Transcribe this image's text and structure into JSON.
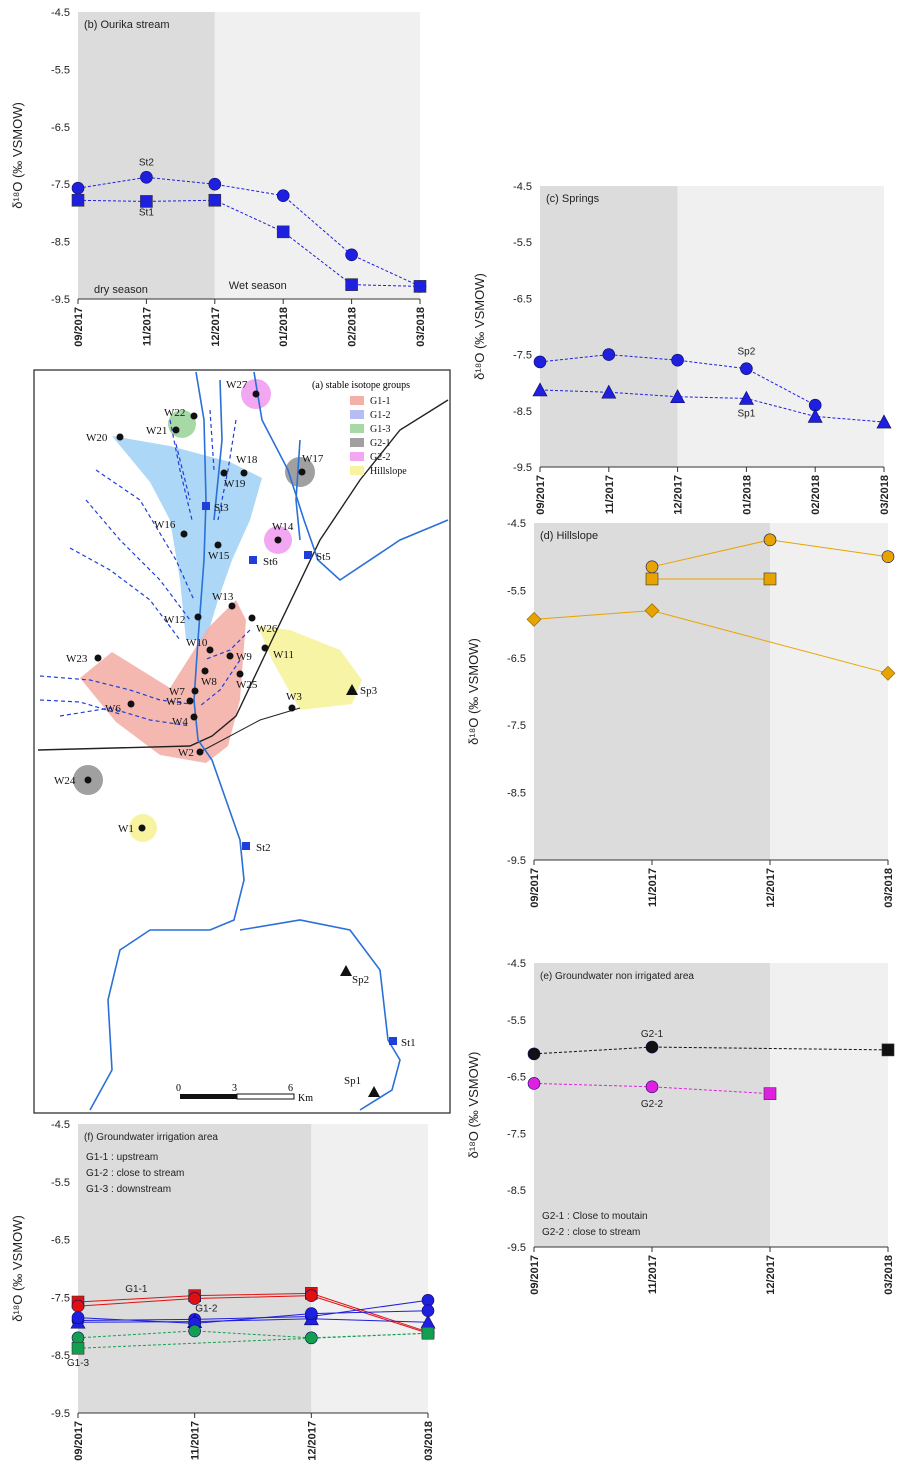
{
  "chart_data": [
    {
      "id": "b",
      "type": "line",
      "panel_title": "(b) Ourika stream",
      "ylabel": "δ¹⁸O (‰ VSMOW)",
      "ylim": [
        -9.5,
        -4.5
      ],
      "yticks": [
        "-4.5",
        "-5.5",
        "-6.5",
        "-7.5",
        "-8.5",
        "-9.5"
      ],
      "categories": [
        "09/2017",
        "11/2017",
        "12/2017",
        "01/2018",
        "02/2018",
        "03/2018"
      ],
      "dry_through": "12/2017",
      "season_labels": [
        "dry season",
        "Wet season"
      ],
      "series": [
        {
          "name": "St2",
          "marker": "circle",
          "color": "#1f1fe0",
          "dash": true,
          "values": [
            -7.57,
            -7.38,
            -7.5,
            -7.7,
            -8.73,
            -9.28
          ]
        },
        {
          "name": "St1",
          "marker": "square",
          "color": "#1f1fe0",
          "dash": true,
          "values": [
            -7.78,
            -7.8,
            -7.78,
            -8.33,
            -9.25,
            -9.28
          ]
        }
      ]
    },
    {
      "id": "c",
      "type": "line",
      "panel_title": "(c) Springs",
      "ylabel": "δ¹⁸O (‰ VSMOW)",
      "ylim": [
        -9.5,
        -4.5
      ],
      "yticks": [
        "-4.5",
        "-5.5",
        "-6.5",
        "-7.5",
        "-8.5",
        "-9.5"
      ],
      "categories": [
        "09/2017",
        "11/2017",
        "12/2017",
        "01/2018",
        "02/2018",
        "03/2018"
      ],
      "dry_through": "12/2017",
      "series": [
        {
          "name": "Sp2",
          "marker": "circle",
          "color": "#1f1fe0",
          "dash": true,
          "values": [
            -7.63,
            -7.5,
            -7.6,
            -7.75,
            -8.4,
            null
          ]
        },
        {
          "name": "Sp1",
          "marker": "triangle",
          "color": "#1f1fe0",
          "dash": true,
          "values": [
            -8.13,
            -8.17,
            -8.25,
            -8.28,
            -8.6,
            -8.7
          ]
        }
      ]
    },
    {
      "id": "d",
      "type": "line",
      "panel_title": "(d) Hillslope",
      "ylabel": "δ¹⁸O (‰ VSMOW)",
      "ylim": [
        -9.5,
        -4.5
      ],
      "yticks": [
        "-4.5",
        "-5.5",
        "-6.5",
        "-7.5",
        "-8.5",
        "-9.5"
      ],
      "categories": [
        "09/2017",
        "11/2017",
        "12/2017",
        "03/2018"
      ],
      "dry_through": "12/2017",
      "series": [
        {
          "marker": "circle",
          "color": "#e7a400",
          "dash": false,
          "values": [
            null,
            -5.15,
            -4.75,
            -5.0
          ]
        },
        {
          "marker": "square",
          "color": "#e7a400",
          "dash": false,
          "values": [
            null,
            -5.33,
            -5.33,
            null
          ]
        },
        {
          "marker": "diamond",
          "color": "#e7a400",
          "dash": false,
          "values": [
            -5.93,
            -5.8,
            null,
            -6.73
          ]
        }
      ]
    },
    {
      "id": "e",
      "type": "line",
      "panel_title": "(e) Groundwater non irrigated area",
      "ylabel": "δ¹⁸O (‰ VSMOW)",
      "ylim": [
        -9.5,
        -4.5
      ],
      "yticks": [
        "-4.5",
        "-5.5",
        "-6.5",
        "-7.5",
        "-8.5",
        "-9.5"
      ],
      "categories": [
        "09/2017",
        "11/2017",
        "12/2017",
        "03/2018"
      ],
      "dry_through": "12/2017",
      "legend_lines": [
        "G2-1 : Close to moutain",
        "G2-2 : close to stream"
      ],
      "series": [
        {
          "name": "G2-1",
          "marker": "circle",
          "color": "#111111",
          "dash": true,
          "values": [
            -6.1,
            -5.98,
            null,
            -6.03
          ],
          "end_marker": "square"
        },
        {
          "name": "G2-2",
          "marker": "circle",
          "color": "#e020e0",
          "dash": true,
          "values": [
            -6.62,
            -6.68,
            -6.8,
            null
          ],
          "end_marker": "square"
        }
      ]
    },
    {
      "id": "f",
      "type": "line",
      "panel_title": "(f) Groundwater irrigation area",
      "ylabel": "δ¹⁸O (‰ VSMOW)",
      "ylim": [
        -9.5,
        -4.5
      ],
      "yticks": [
        "-4.5",
        "-5.5",
        "-6.5",
        "-7.5",
        "-8.5",
        "-9.5"
      ],
      "categories": [
        "09/2017",
        "11/2017",
        "12/2017",
        "03/2018"
      ],
      "dry_through": "12/2017",
      "legend_lines": [
        "G1-1 : upstream",
        "G1-2 : close to stream",
        "G1-3 : downstream"
      ],
      "series": [
        {
          "name": "G1-1",
          "marker": "square",
          "color": "#e01010",
          "dash": false,
          "values": [
            -7.58,
            -7.47,
            -7.43,
            -8.1
          ]
        },
        {
          "marker": "circle",
          "color": "#e01010",
          "dash": false,
          "values": [
            -7.65,
            -7.52,
            -7.47,
            -8.12
          ]
        },
        {
          "name": "G1-2",
          "marker": "circle",
          "color": "#1f1fe0",
          "dash": false,
          "values": [
            -7.9,
            -7.88,
            -7.83,
            -7.55
          ]
        },
        {
          "marker": "triangle",
          "color": "#1f1fe0",
          "dash": false,
          "values": [
            -7.93,
            -7.92,
            -7.87,
            -7.93
          ]
        },
        {
          "marker": "circle",
          "color": "#1f1fe0",
          "dash": false,
          "values": [
            -7.85,
            -7.95,
            -7.78,
            -7.73
          ]
        },
        {
          "name": "G1-3",
          "marker": "circle",
          "color": "#12a050",
          "dash": true,
          "values": [
            -8.2,
            -8.08,
            -8.2,
            -8.12
          ]
        },
        {
          "marker": "square",
          "color": "#12a050",
          "dash": true,
          "values": [
            -8.38,
            null,
            null,
            -8.12
          ]
        }
      ]
    }
  ],
  "map": {
    "title": "(a) stable isotope groups",
    "legend": [
      {
        "label": "G1-1",
        "color": "#f4b0a8"
      },
      {
        "label": "G1-2",
        "color": "#b7bdf3"
      },
      {
        "label": "G1-3",
        "color": "#a6d9a6"
      },
      {
        "label": "G2-1",
        "color": "#a0a0a0"
      },
      {
        "label": "G2-2",
        "color": "#f2a7f2"
      },
      {
        "label": "Hillslope",
        "color": "#f7f3a0"
      }
    ],
    "scale_labels": [
      "0",
      "3",
      "6",
      "Km"
    ],
    "wells": [
      "W1",
      "W2",
      "W3",
      "W4",
      "W5",
      "W6",
      "W7",
      "W8",
      "W9",
      "W10",
      "W11",
      "W12",
      "W13",
      "W14",
      "W15",
      "W16",
      "W17",
      "W18",
      "W19",
      "W20",
      "W21",
      "W22",
      "W23",
      "W24",
      "W25",
      "W26",
      "W27"
    ],
    "streams": [
      "St1",
      "St2",
      "St3",
      "St5",
      "St6"
    ],
    "springs": [
      "Sp1",
      "Sp2",
      "Sp3"
    ]
  }
}
